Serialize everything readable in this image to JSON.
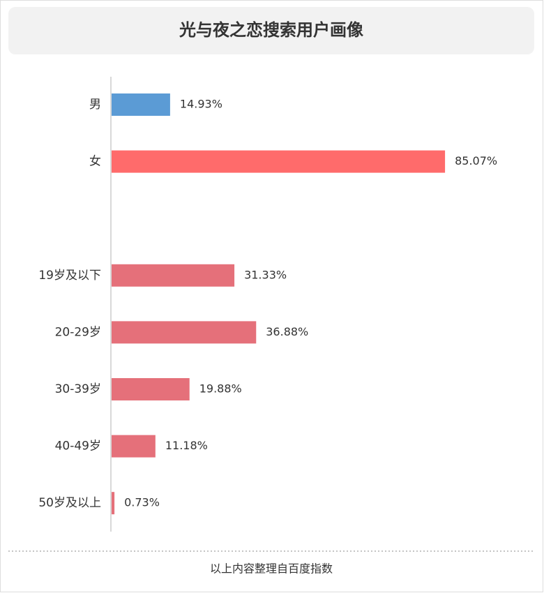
{
  "chart_data": {
    "type": "hbar",
    "title": "光与夜之恋搜索用户画像",
    "categories": [
      "男",
      "女",
      null,
      "19岁及以下",
      "20-29岁",
      "30-39岁",
      "40-49岁",
      "50岁及以上"
    ],
    "values": [
      14.93,
      85.07,
      null,
      31.33,
      36.88,
      19.88,
      11.18,
      0.73
    ],
    "value_labels": [
      "14.93%",
      "85.07%",
      null,
      "31.33%",
      "36.88%",
      "19.88%",
      "11.18%",
      "0.73%"
    ],
    "colors": [
      "#5b9bd5",
      "#ff6b6b",
      null,
      "#e5707a",
      "#e5707a",
      "#e5707a",
      "#e5707a",
      "#e5707a"
    ],
    "xlim": [
      0,
      100
    ],
    "source": "以上内容整理自百度指数"
  }
}
